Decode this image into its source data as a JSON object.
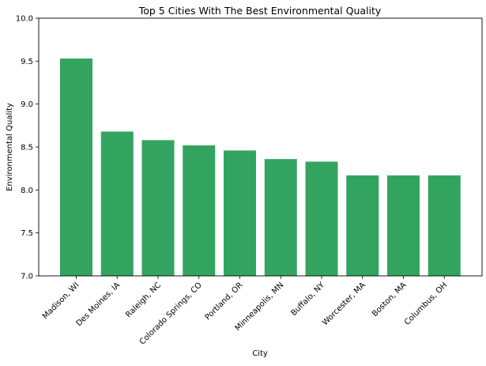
{
  "chart_data": {
    "type": "bar",
    "title": "Top 5 Cities With The Best Environmental Quality",
    "xlabel": "City",
    "ylabel": "Environmental Quality",
    "categories": [
      "Madison, WI",
      "Des Moines, IA",
      "Raleigh, NC",
      "Colorado Springs, CO",
      "Portland, OR",
      "Minneapolis, MN",
      "Buffalo, NY",
      "Worcester, MA",
      "Boston, MA",
      "Columbus, OH"
    ],
    "values": [
      9.53,
      8.68,
      8.58,
      8.52,
      8.46,
      8.36,
      8.33,
      8.17,
      8.17,
      8.17
    ],
    "ylim": [
      7.0,
      10.0
    ],
    "yticks": [
      "7.0",
      "7.5",
      "8.0",
      "8.5",
      "9.0",
      "9.5",
      "10.0"
    ],
    "bar_color": "#33a460",
    "grid": false,
    "legend": "none"
  }
}
